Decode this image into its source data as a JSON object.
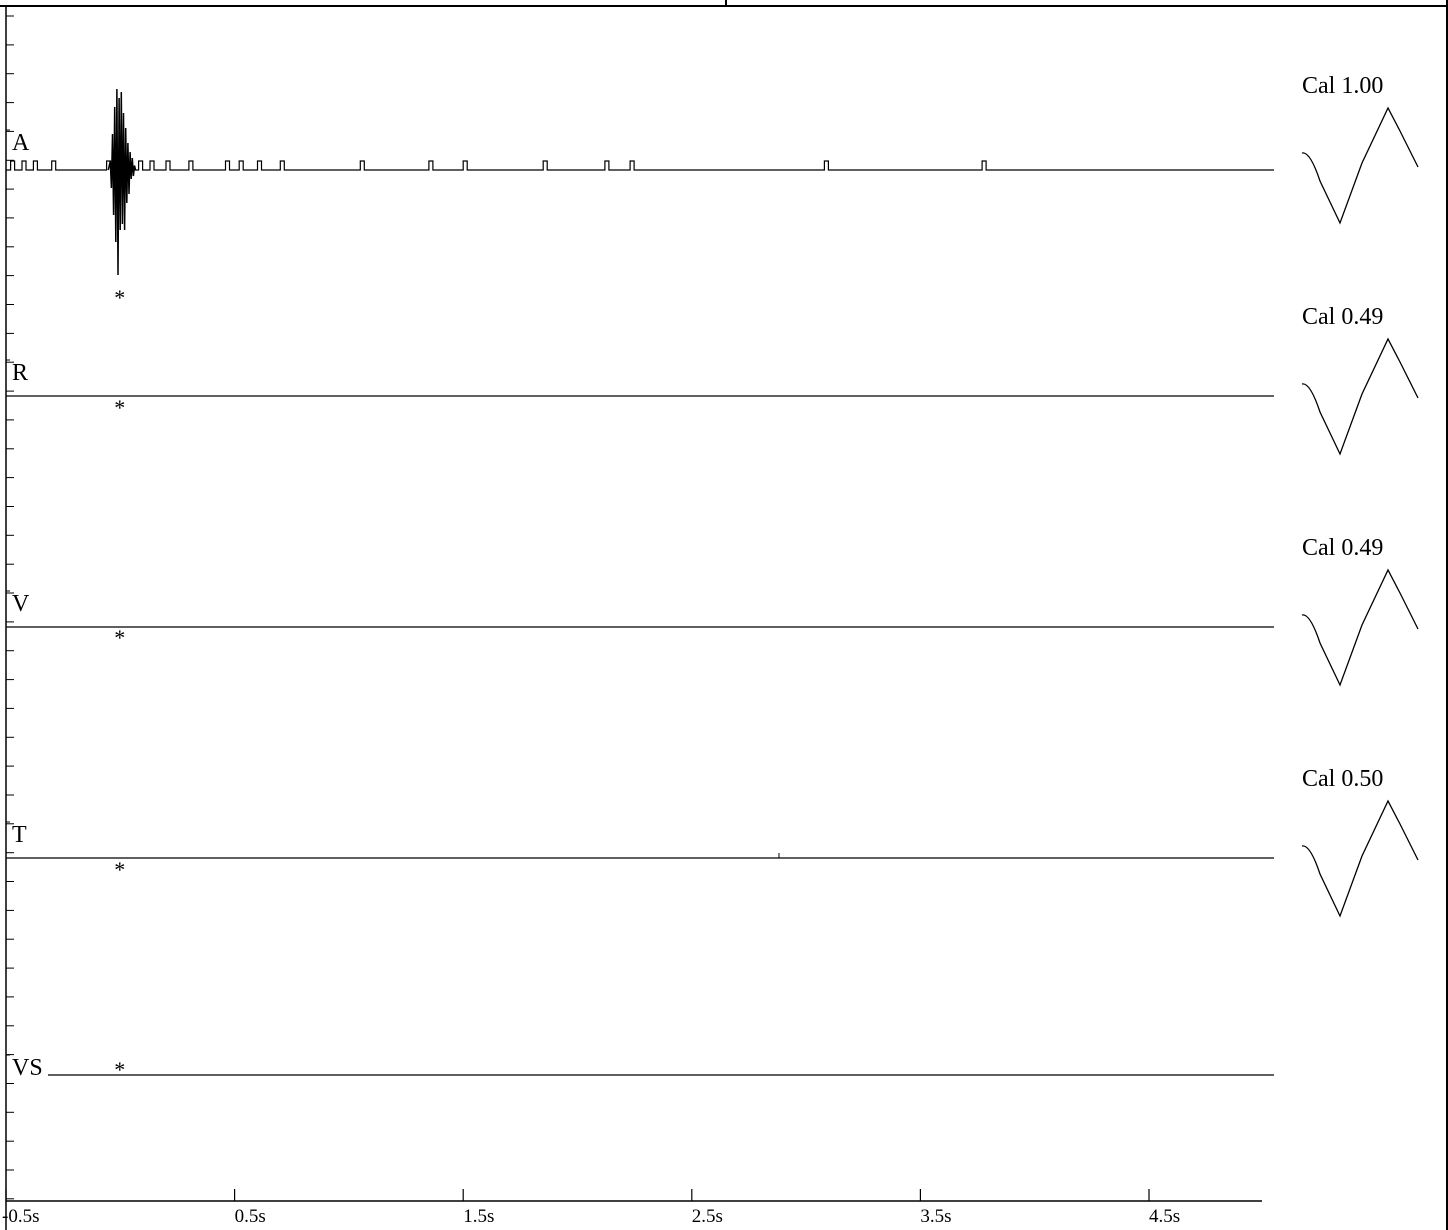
{
  "chart_data": {
    "type": "line",
    "title": "",
    "xlabel": "",
    "ylabel": "",
    "x_unit": "s",
    "xlim": [
      -0.5,
      5.0
    ],
    "x_tick_values": [
      -0.5,
      0.5,
      1.5,
      2.5,
      3.5,
      4.5
    ],
    "x_tick_labels": [
      "-0.5s",
      "0.5s",
      "1.5s",
      "2.5s",
      "3.5s",
      "4.5s"
    ],
    "event_marker": "*",
    "event_time": 0.0,
    "grid": false,
    "series": [
      {
        "name": "A",
        "calibration": "Cal 1.00",
        "description_values": {
          "baseline": 0,
          "burst_time": 0.0,
          "burst_peak_positive": 2.7,
          "burst_peak_negative": -3.5,
          "blip_times": [
            -0.48,
            -0.43,
            -0.38,
            -0.3,
            -0.06,
            0.08,
            0.13,
            0.2,
            0.3,
            0.46,
            0.52,
            0.6,
            0.7,
            1.05,
            1.35,
            1.5,
            1.85,
            2.12,
            2.23,
            3.08,
            3.77
          ]
        }
      },
      {
        "name": "R",
        "calibration": "Cal 0.49"
      },
      {
        "name": "V",
        "calibration": "Cal 0.49"
      },
      {
        "name": "T",
        "calibration": "Cal 0.50"
      },
      {
        "name": "VS",
        "calibration": ""
      }
    ]
  }
}
